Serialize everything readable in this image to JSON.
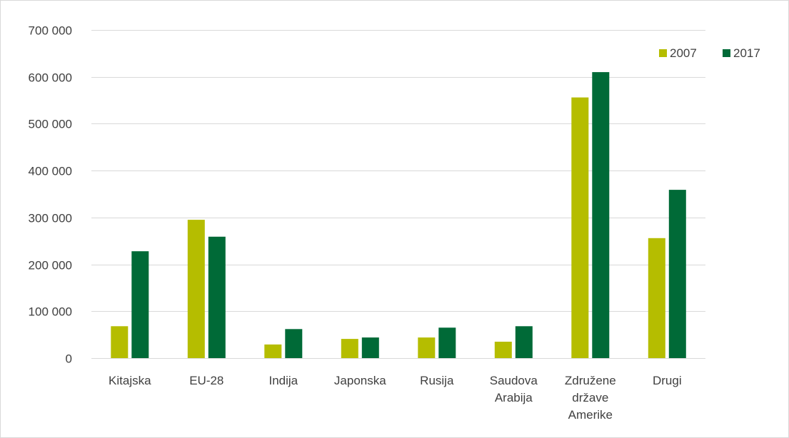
{
  "chart_data": {
    "type": "bar",
    "title": "",
    "xlabel": "",
    "ylabel": "",
    "categories": [
      [
        "Kitajska"
      ],
      [
        "EU-28"
      ],
      [
        "Indija"
      ],
      [
        "Japonska"
      ],
      [
        "Rusija"
      ],
      [
        "Saudova",
        "Arabija"
      ],
      [
        "Združene",
        "države",
        "Amerike"
      ],
      [
        "Drugi"
      ]
    ],
    "series": [
      {
        "name": "2007",
        "color": "#b5bd00",
        "values": [
          68000,
          295000,
          29000,
          41000,
          44000,
          35000,
          556000,
          256000
        ]
      },
      {
        "name": "2017",
        "color": "#006a37",
        "values": [
          228000,
          259000,
          62000,
          44000,
          65000,
          68000,
          610000,
          359000
        ]
      }
    ],
    "ylim": [
      0,
      700000
    ],
    "yticks": [
      0,
      100000,
      200000,
      300000,
      400000,
      500000,
      600000,
      700000
    ],
    "ytick_labels": [
      "0",
      "100 000",
      "200 000",
      "300 000",
      "400 000",
      "500 000",
      "600 000",
      "700 000"
    ],
    "grid": true,
    "gridline_color": "#d9d9d9",
    "legend_position": "top-right"
  }
}
